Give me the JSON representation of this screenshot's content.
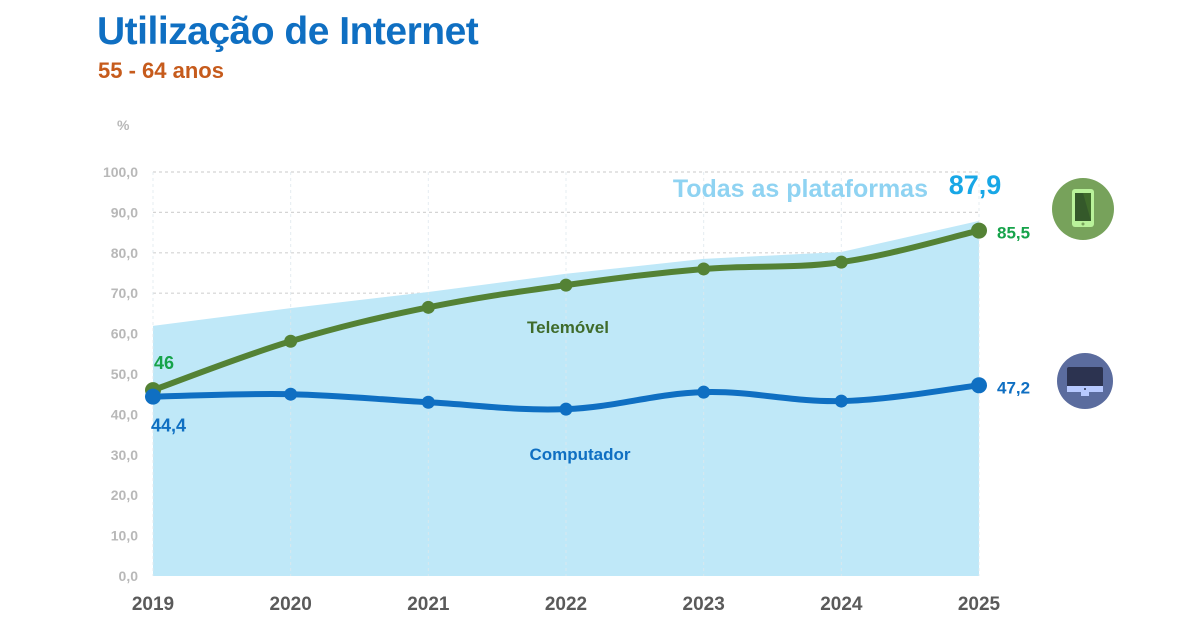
{
  "header": {
    "title": "Utilização de Internet",
    "subtitle": "55 - 64 anos"
  },
  "colors": {
    "title": "#0f6fc2",
    "subtitle": "#c65b1c",
    "area_fill": "#bfe8f8",
    "area_label": "#8fd3f2",
    "area_value": "#18a7e6",
    "telemovel_line": "#548235",
    "telemovel_value": "#16a34a",
    "computador_line": "#0f6fc2",
    "grid": "#d4d4d4",
    "tick_y": "#b8b8b8",
    "tick_x": "#5a5a5a",
    "phone_icon_bg": "#77a25b",
    "computer_icon_bg": "#5b6c9e"
  },
  "icons": {
    "phone": "smartphone-icon",
    "computer": "desktop-computer-icon"
  },
  "chart_data": {
    "type": "line",
    "title": "Utilização de Internet",
    "subtitle": "55 - 64 anos",
    "xlabel": "",
    "ylabel": "%",
    "categories": [
      "2019",
      "2020",
      "2021",
      "2022",
      "2023",
      "2024",
      "2025"
    ],
    "ylim": [
      0,
      100
    ],
    "yticks": [
      "0,0",
      "10,0",
      "20,0",
      "30,0",
      "40,0",
      "50,0",
      "60,0",
      "70,0",
      "80,0",
      "90,0",
      "100,0"
    ],
    "grid": true,
    "series": [
      {
        "name": "Todas as plataformas",
        "type": "area",
        "values": [
          61.9,
          66.3,
          70.3,
          74.8,
          78.5,
          80.2,
          87.9
        ],
        "end_label": "87,9"
      },
      {
        "name": "Telemóvel",
        "type": "line",
        "values": [
          46.0,
          58.1,
          66.5,
          72.0,
          76.0,
          77.7,
          85.5
        ],
        "start_label": "46",
        "end_label": "85,5"
      },
      {
        "name": "Computador",
        "type": "line",
        "values": [
          44.4,
          45.0,
          43.0,
          41.3,
          45.5,
          43.3,
          47.2
        ],
        "start_label": "44,4",
        "end_label": "47,2"
      }
    ]
  }
}
